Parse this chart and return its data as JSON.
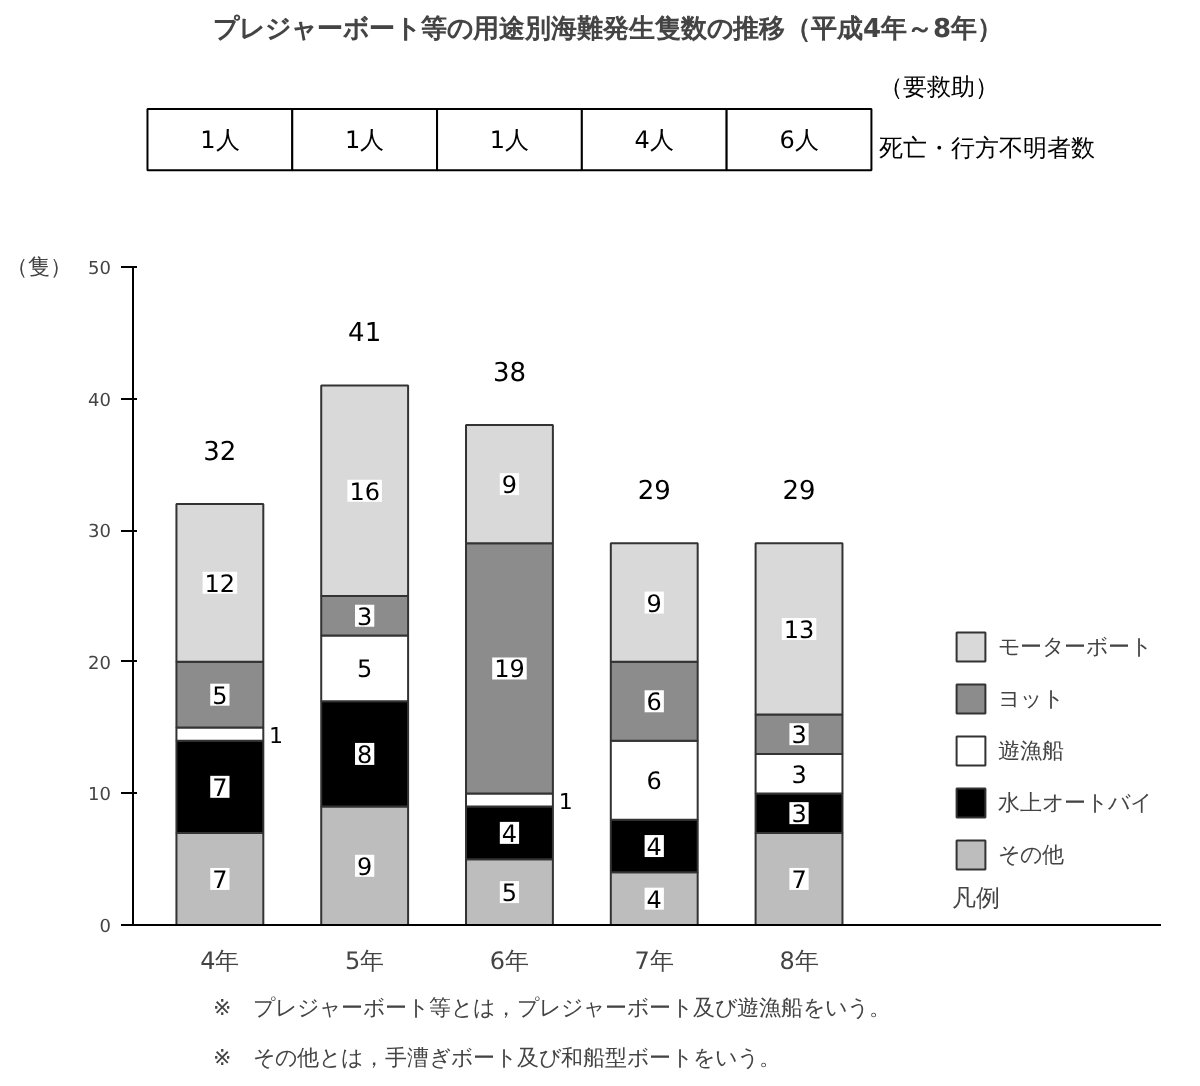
{
  "chart_data": {
    "type": "bar",
    "title": "プレジャーボート等の用途別海難発生隻数の推移（平成4年～8年）",
    "ylabel": "（隻）",
    "legend_title": "凡例",
    "categories": [
      "4年",
      "5年",
      "6年",
      "7年",
      "8年"
    ],
    "stacked": true,
    "series": [
      {
        "name": "その他",
        "color": "#bdbdbd",
        "values": [
          7,
          9,
          5,
          4,
          7
        ]
      },
      {
        "name": "水上オートバイ",
        "color": "#000000",
        "values": [
          7,
          8,
          4,
          4,
          3
        ]
      },
      {
        "name": "遊漁船",
        "color": "#ffffff",
        "values": [
          1,
          5,
          1,
          6,
          3
        ]
      },
      {
        "name": "ヨット",
        "color": "#8c8c8c",
        "values": [
          5,
          3,
          19,
          6,
          3
        ]
      },
      {
        "name": "モーターボート",
        "color": "#d9d9d9",
        "values": [
          12,
          16,
          9,
          9,
          13
        ]
      }
    ],
    "ylim": [
      0,
      50
    ],
    "yticks": [
      0,
      10,
      20,
      30,
      40,
      50
    ],
    "data_labels": true,
    "totals": [
      "32",
      "41",
      "38",
      "29",
      "29"
    ],
    "legend": "bottom right",
    "annotations": [
      "1人",
      "1人",
      "1人",
      "4人",
      "6人",
      "（要救助）",
      "死亡・行方不明者数",
      "※　プレジャーボート等とは，プレジャーボート及び遊漁船をいう。",
      "※　その他とは，手漕ぎボート及び和船型ボートをいう。"
    ]
  }
}
